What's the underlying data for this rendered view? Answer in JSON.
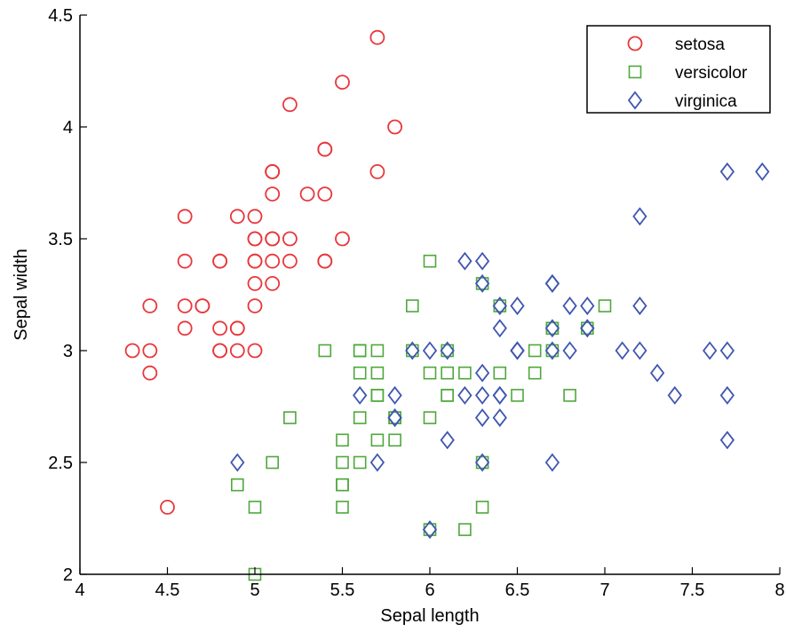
{
  "chart_data": {
    "type": "scatter",
    "title": "",
    "xlabel": "Sepal length",
    "ylabel": "Sepal width",
    "xlim": [
      4,
      8
    ],
    "ylim": [
      2,
      4.5
    ],
    "xticks": [
      4,
      4.5,
      5,
      5.5,
      6,
      6.5,
      7,
      7.5,
      8
    ],
    "xtick_labels": [
      "4",
      "4.5",
      "5",
      "5.5",
      "6",
      "6.5",
      "7",
      "7.5",
      "8"
    ],
    "yticks": [
      2,
      2.5,
      3,
      3.5,
      4,
      4.5
    ],
    "ytick_labels": [
      "2",
      "2.5",
      "3",
      "3.5",
      "4",
      "4.5"
    ],
    "grid": false,
    "legend_position": "top-right",
    "series": [
      {
        "name": "setosa",
        "marker": "circle",
        "color": "#e8373c",
        "points": [
          [
            5.1,
            3.5
          ],
          [
            4.9,
            3.0
          ],
          [
            4.7,
            3.2
          ],
          [
            4.6,
            3.1
          ],
          [
            5.0,
            3.6
          ],
          [
            5.4,
            3.9
          ],
          [
            4.6,
            3.4
          ],
          [
            5.0,
            3.4
          ],
          [
            4.4,
            2.9
          ],
          [
            4.9,
            3.1
          ],
          [
            5.4,
            3.7
          ],
          [
            4.8,
            3.4
          ],
          [
            4.8,
            3.0
          ],
          [
            4.3,
            3.0
          ],
          [
            5.8,
            4.0
          ],
          [
            5.7,
            4.4
          ],
          [
            5.4,
            3.9
          ],
          [
            5.1,
            3.5
          ],
          [
            5.7,
            3.8
          ],
          [
            5.1,
            3.8
          ],
          [
            5.4,
            3.4
          ],
          [
            5.1,
            3.7
          ],
          [
            4.6,
            3.6
          ],
          [
            5.1,
            3.3
          ],
          [
            4.8,
            3.4
          ],
          [
            5.0,
            3.0
          ],
          [
            5.0,
            3.4
          ],
          [
            5.2,
            3.5
          ],
          [
            5.2,
            3.4
          ],
          [
            4.7,
            3.2
          ],
          [
            4.8,
            3.1
          ],
          [
            5.4,
            3.4
          ],
          [
            5.2,
            4.1
          ],
          [
            5.5,
            4.2
          ],
          [
            4.9,
            3.1
          ],
          [
            5.0,
            3.2
          ],
          [
            5.5,
            3.5
          ],
          [
            4.9,
            3.6
          ],
          [
            4.4,
            3.0
          ],
          [
            5.1,
            3.4
          ],
          [
            5.0,
            3.5
          ],
          [
            4.5,
            2.3
          ],
          [
            4.4,
            3.2
          ],
          [
            5.0,
            3.5
          ],
          [
            5.1,
            3.8
          ],
          [
            4.8,
            3.0
          ],
          [
            5.1,
            3.8
          ],
          [
            4.6,
            3.2
          ],
          [
            5.3,
            3.7
          ],
          [
            5.0,
            3.3
          ]
        ]
      },
      {
        "name": "versicolor",
        "marker": "square",
        "color": "#4ea83c",
        "points": [
          [
            7.0,
            3.2
          ],
          [
            6.4,
            3.2
          ],
          [
            6.9,
            3.1
          ],
          [
            5.5,
            2.3
          ],
          [
            6.5,
            2.8
          ],
          [
            5.7,
            2.8
          ],
          [
            6.3,
            3.3
          ],
          [
            4.9,
            2.4
          ],
          [
            6.6,
            2.9
          ],
          [
            5.2,
            2.7
          ],
          [
            5.0,
            2.0
          ],
          [
            5.9,
            3.0
          ],
          [
            6.0,
            2.2
          ],
          [
            6.1,
            2.9
          ],
          [
            5.6,
            2.9
          ],
          [
            6.7,
            3.1
          ],
          [
            5.6,
            3.0
          ],
          [
            5.8,
            2.7
          ],
          [
            6.2,
            2.2
          ],
          [
            5.6,
            2.5
          ],
          [
            5.9,
            3.2
          ],
          [
            6.1,
            2.8
          ],
          [
            6.3,
            2.5
          ],
          [
            6.1,
            2.8
          ],
          [
            6.4,
            2.9
          ],
          [
            6.6,
            3.0
          ],
          [
            6.8,
            2.8
          ],
          [
            6.7,
            3.0
          ],
          [
            6.0,
            2.9
          ],
          [
            5.7,
            2.6
          ],
          [
            5.5,
            2.4
          ],
          [
            5.5,
            2.4
          ],
          [
            5.8,
            2.7
          ],
          [
            6.0,
            2.7
          ],
          [
            5.4,
            3.0
          ],
          [
            6.0,
            3.4
          ],
          [
            6.7,
            3.1
          ],
          [
            6.3,
            2.3
          ],
          [
            5.6,
            3.0
          ],
          [
            5.5,
            2.5
          ],
          [
            5.5,
            2.6
          ],
          [
            6.1,
            3.0
          ],
          [
            5.8,
            2.6
          ],
          [
            5.0,
            2.3
          ],
          [
            5.6,
            2.7
          ],
          [
            5.7,
            3.0
          ],
          [
            5.7,
            2.9
          ],
          [
            6.2,
            2.9
          ],
          [
            5.1,
            2.5
          ],
          [
            5.7,
            2.8
          ]
        ]
      },
      {
        "name": "virginica",
        "marker": "diamond",
        "color": "#3f56b0",
        "points": [
          [
            6.3,
            3.3
          ],
          [
            5.8,
            2.7
          ],
          [
            7.1,
            3.0
          ],
          [
            6.3,
            2.9
          ],
          [
            6.5,
            3.0
          ],
          [
            7.6,
            3.0
          ],
          [
            4.9,
            2.5
          ],
          [
            7.3,
            2.9
          ],
          [
            6.7,
            2.5
          ],
          [
            7.2,
            3.6
          ],
          [
            6.5,
            3.2
          ],
          [
            6.4,
            2.7
          ],
          [
            6.8,
            3.0
          ],
          [
            5.7,
            2.5
          ],
          [
            5.8,
            2.8
          ],
          [
            6.4,
            3.2
          ],
          [
            6.5,
            3.0
          ],
          [
            7.7,
            3.8
          ],
          [
            7.7,
            2.6
          ],
          [
            6.0,
            2.2
          ],
          [
            6.9,
            3.2
          ],
          [
            5.6,
            2.8
          ],
          [
            7.7,
            2.8
          ],
          [
            6.3,
            2.7
          ],
          [
            6.7,
            3.3
          ],
          [
            7.2,
            3.2
          ],
          [
            6.2,
            2.8
          ],
          [
            6.1,
            3.0
          ],
          [
            6.4,
            2.8
          ],
          [
            7.2,
            3.0
          ],
          [
            7.4,
            2.8
          ],
          [
            7.9,
            3.8
          ],
          [
            6.4,
            2.8
          ],
          [
            6.3,
            2.8
          ],
          [
            6.1,
            2.6
          ],
          [
            7.7,
            3.0
          ],
          [
            6.3,
            3.4
          ],
          [
            6.4,
            3.1
          ],
          [
            6.0,
            3.0
          ],
          [
            6.9,
            3.1
          ],
          [
            6.7,
            3.1
          ],
          [
            6.9,
            3.1
          ],
          [
            5.8,
            2.7
          ],
          [
            6.8,
            3.2
          ],
          [
            6.7,
            3.3
          ],
          [
            6.7,
            3.0
          ],
          [
            6.3,
            2.5
          ],
          [
            6.5,
            3.0
          ],
          [
            6.2,
            3.4
          ],
          [
            5.9,
            3.0
          ]
        ]
      }
    ]
  }
}
